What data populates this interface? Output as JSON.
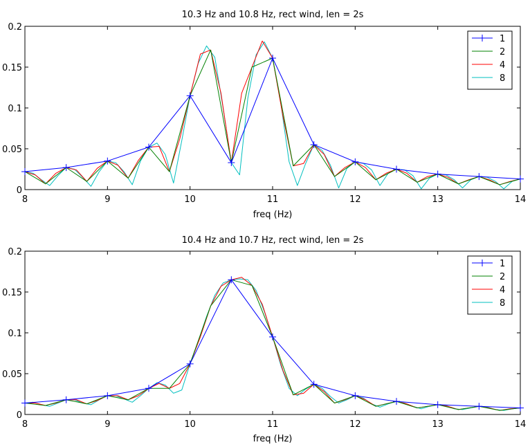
{
  "chart_data": [
    {
      "type": "line",
      "title": "10.3 Hz and 10.8 Hz, rect wind, len = 2s",
      "xlabel": "freq (Hz)",
      "ylabel": "",
      "xlim": [
        8,
        14
      ],
      "ylim": [
        0,
        0.2
      ],
      "xticks": [
        8,
        9,
        10,
        11,
        12,
        13,
        14
      ],
      "yticks": [
        0,
        0.05,
        0.1,
        0.15,
        0.2
      ],
      "xtick_labels": [
        "8",
        "9",
        "10",
        "11",
        "12",
        "13",
        "14"
      ],
      "ytick_labels": [
        "0",
        "0.05",
        "0.1",
        "0.15",
        "0.2"
      ],
      "legend_position": "top-right",
      "series": [
        {
          "name": "1",
          "color": "#0000ff",
          "marker": "plus",
          "x": [
            8,
            8.5,
            9,
            9.5,
            10,
            10.5,
            11,
            11.5,
            12,
            12.5,
            13,
            13.5,
            14
          ],
          "y": [
            0.022,
            0.027,
            0.035,
            0.052,
            0.115,
            0.033,
            0.161,
            0.055,
            0.034,
            0.025,
            0.019,
            0.016,
            0.013
          ]
        },
        {
          "name": "2",
          "color": "#008000",
          "marker": "none",
          "x": [
            8,
            8.25,
            8.5,
            8.75,
            9,
            9.25,
            9.5,
            9.75,
            10,
            10.25,
            10.5,
            10.75,
            11,
            11.25,
            11.5,
            11.75,
            12,
            12.25,
            12.5,
            12.75,
            13,
            13.25,
            13.5,
            13.75,
            14
          ],
          "y": [
            0.022,
            0.007,
            0.027,
            0.01,
            0.035,
            0.014,
            0.052,
            0.022,
            0.115,
            0.171,
            0.033,
            0.15,
            0.161,
            0.029,
            0.055,
            0.016,
            0.034,
            0.012,
            0.025,
            0.009,
            0.019,
            0.007,
            0.016,
            0.006,
            0.013
          ]
        },
        {
          "name": "4",
          "color": "#ff0000",
          "marker": "none",
          "x": [
            8,
            8.125,
            8.25,
            8.375,
            8.5,
            8.625,
            8.75,
            8.875,
            9,
            9.125,
            9.25,
            9.375,
            9.5,
            9.625,
            9.75,
            9.875,
            10,
            10.125,
            10.25,
            10.375,
            10.5,
            10.625,
            10.75,
            10.875,
            11,
            11.125,
            11.25,
            11.375,
            11.5,
            11.625,
            11.75,
            11.875,
            12,
            12.125,
            12.25,
            12.375,
            12.5,
            12.625,
            12.75,
            12.875,
            13,
            13.125,
            13.25,
            13.375,
            13.5,
            13.625,
            13.75,
            13.875,
            14
          ],
          "y": [
            0.022,
            0.018,
            0.007,
            0.02,
            0.027,
            0.024,
            0.01,
            0.026,
            0.035,
            0.03,
            0.014,
            0.036,
            0.052,
            0.053,
            0.022,
            0.062,
            0.115,
            0.166,
            0.171,
            0.118,
            0.033,
            0.118,
            0.15,
            0.182,
            0.161,
            0.09,
            0.029,
            0.032,
            0.055,
            0.043,
            0.016,
            0.027,
            0.034,
            0.027,
            0.012,
            0.02,
            0.025,
            0.02,
            0.009,
            0.016,
            0.019,
            0.015,
            0.007,
            0.012,
            0.016,
            0.012,
            0.006,
            0.01,
            0.013
          ]
        },
        {
          "name": "8",
          "color": "#00bfbf",
          "marker": "none",
          "x": [
            8,
            8.1,
            8.2,
            8.3,
            8.4,
            8.5,
            8.6,
            8.7,
            8.8,
            8.9,
            9,
            9.1,
            9.2,
            9.3,
            9.4,
            9.5,
            9.6,
            9.7,
            9.8,
            9.9,
            10,
            10.1,
            10.2,
            10.3,
            10.4,
            10.5,
            10.6,
            10.7,
            10.8,
            10.9,
            11,
            11.1,
            11.2,
            11.3,
            11.4,
            11.5,
            11.6,
            11.7,
            11.8,
            11.9,
            12,
            12.1,
            12.2,
            12.3,
            12.4,
            12.5,
            12.6,
            12.7,
            12.8,
            12.9,
            13,
            13.1,
            13.2,
            13.3,
            13.4,
            13.5,
            13.6,
            13.7,
            13.8,
            13.9,
            14
          ],
          "y": [
            0.022,
            0.02,
            0.012,
            0.005,
            0.017,
            0.027,
            0.025,
            0.015,
            0.004,
            0.022,
            0.035,
            0.033,
            0.022,
            0.006,
            0.035,
            0.052,
            0.057,
            0.043,
            0.008,
            0.06,
            0.115,
            0.155,
            0.176,
            0.162,
            0.1,
            0.033,
            0.018,
            0.112,
            0.165,
            0.181,
            0.161,
            0.105,
            0.034,
            0.005,
            0.032,
            0.055,
            0.048,
            0.03,
            0.002,
            0.026,
            0.034,
            0.032,
            0.024,
            0.005,
            0.02,
            0.025,
            0.024,
            0.017,
            0.001,
            0.014,
            0.019,
            0.018,
            0.012,
            0.002,
            0.012,
            0.016,
            0.015,
            0.01,
            0.001,
            0.01,
            0.013
          ]
        }
      ]
    },
    {
      "type": "line",
      "title": "10.4 Hz and 10.7 Hz, rect wind, len = 2s",
      "xlabel": "freq (Hz)",
      "ylabel": "",
      "xlim": [
        8,
        14
      ],
      "ylim": [
        0,
        0.2
      ],
      "xticks": [
        8,
        9,
        10,
        11,
        12,
        13,
        14
      ],
      "yticks": [
        0,
        0.05,
        0.1,
        0.15,
        0.2
      ],
      "xtick_labels": [
        "8",
        "9",
        "10",
        "11",
        "12",
        "13",
        "14"
      ],
      "ytick_labels": [
        "0",
        "0.05",
        "0.1",
        "0.15",
        "0.2"
      ],
      "legend_position": "top-right",
      "series": [
        {
          "name": "1",
          "color": "#0000ff",
          "marker": "plus",
          "x": [
            8,
            8.5,
            9,
            9.5,
            10,
            10.5,
            11,
            11.5,
            12,
            12.5,
            13,
            13.5,
            14
          ],
          "y": [
            0.014,
            0.018,
            0.023,
            0.032,
            0.062,
            0.165,
            0.095,
            0.037,
            0.023,
            0.016,
            0.012,
            0.01,
            0.008
          ]
        },
        {
          "name": "2",
          "color": "#008000",
          "marker": "none",
          "x": [
            8,
            8.25,
            8.5,
            8.75,
            9,
            9.25,
            9.5,
            9.75,
            10,
            10.25,
            10.5,
            10.75,
            11,
            11.25,
            11.5,
            11.75,
            12,
            12.25,
            12.5,
            12.75,
            13,
            13.25,
            13.5,
            13.75,
            14
          ],
          "y": [
            0.014,
            0.011,
            0.018,
            0.013,
            0.023,
            0.018,
            0.032,
            0.032,
            0.062,
            0.133,
            0.165,
            0.158,
            0.095,
            0.024,
            0.037,
            0.014,
            0.023,
            0.01,
            0.016,
            0.008,
            0.012,
            0.006,
            0.01,
            0.005,
            0.008
          ]
        },
        {
          "name": "4",
          "color": "#ff0000",
          "marker": "none",
          "x": [
            8,
            8.125,
            8.25,
            8.375,
            8.5,
            8.625,
            8.75,
            8.875,
            9,
            9.125,
            9.25,
            9.375,
            9.5,
            9.625,
            9.75,
            9.875,
            10,
            10.125,
            10.25,
            10.375,
            10.5,
            10.625,
            10.75,
            10.875,
            11,
            11.125,
            11.25,
            11.375,
            11.5,
            11.625,
            11.75,
            11.875,
            12,
            12.125,
            12.25,
            12.375,
            12.5,
            12.625,
            12.75,
            12.875,
            13,
            13.125,
            13.25,
            13.375,
            13.5,
            13.625,
            13.75,
            13.875,
            14
          ],
          "y": [
            0.014,
            0.014,
            0.011,
            0.014,
            0.018,
            0.018,
            0.013,
            0.017,
            0.023,
            0.023,
            0.018,
            0.023,
            0.032,
            0.038,
            0.032,
            0.038,
            0.062,
            0.095,
            0.133,
            0.157,
            0.165,
            0.168,
            0.158,
            0.135,
            0.095,
            0.054,
            0.024,
            0.026,
            0.037,
            0.028,
            0.014,
            0.018,
            0.023,
            0.018,
            0.01,
            0.013,
            0.016,
            0.013,
            0.008,
            0.01,
            0.012,
            0.01,
            0.006,
            0.008,
            0.01,
            0.008,
            0.005,
            0.007,
            0.008
          ]
        },
        {
          "name": "8",
          "color": "#00bfbf",
          "marker": "none",
          "x": [
            8,
            8.1,
            8.2,
            8.3,
            8.4,
            8.5,
            8.6,
            8.7,
            8.8,
            8.9,
            9,
            9.1,
            9.2,
            9.3,
            9.4,
            9.5,
            9.6,
            9.7,
            9.8,
            9.9,
            10,
            10.1,
            10.2,
            10.3,
            10.4,
            10.5,
            10.6,
            10.7,
            10.8,
            10.9,
            11,
            11.1,
            11.2,
            11.3,
            11.4,
            11.5,
            11.6,
            11.7,
            11.8,
            11.9,
            12,
            12.1,
            12.2,
            12.3,
            12.4,
            12.5,
            12.6,
            12.7,
            12.8,
            12.9,
            13,
            13.1,
            13.2,
            13.3,
            13.4,
            13.5,
            13.6,
            13.7,
            13.8,
            13.9,
            14
          ],
          "y": [
            0.014,
            0.015,
            0.012,
            0.01,
            0.014,
            0.018,
            0.018,
            0.014,
            0.012,
            0.018,
            0.023,
            0.023,
            0.019,
            0.015,
            0.023,
            0.032,
            0.039,
            0.036,
            0.026,
            0.03,
            0.062,
            0.09,
            0.12,
            0.146,
            0.161,
            0.165,
            0.166,
            0.165,
            0.152,
            0.126,
            0.095,
            0.06,
            0.032,
            0.023,
            0.031,
            0.037,
            0.032,
            0.022,
            0.014,
            0.018,
            0.023,
            0.02,
            0.013,
            0.009,
            0.013,
            0.016,
            0.014,
            0.01,
            0.007,
            0.01,
            0.012,
            0.011,
            0.007,
            0.006,
            0.008,
            0.01,
            0.009,
            0.006,
            0.005,
            0.007,
            0.008
          ]
        }
      ]
    }
  ]
}
